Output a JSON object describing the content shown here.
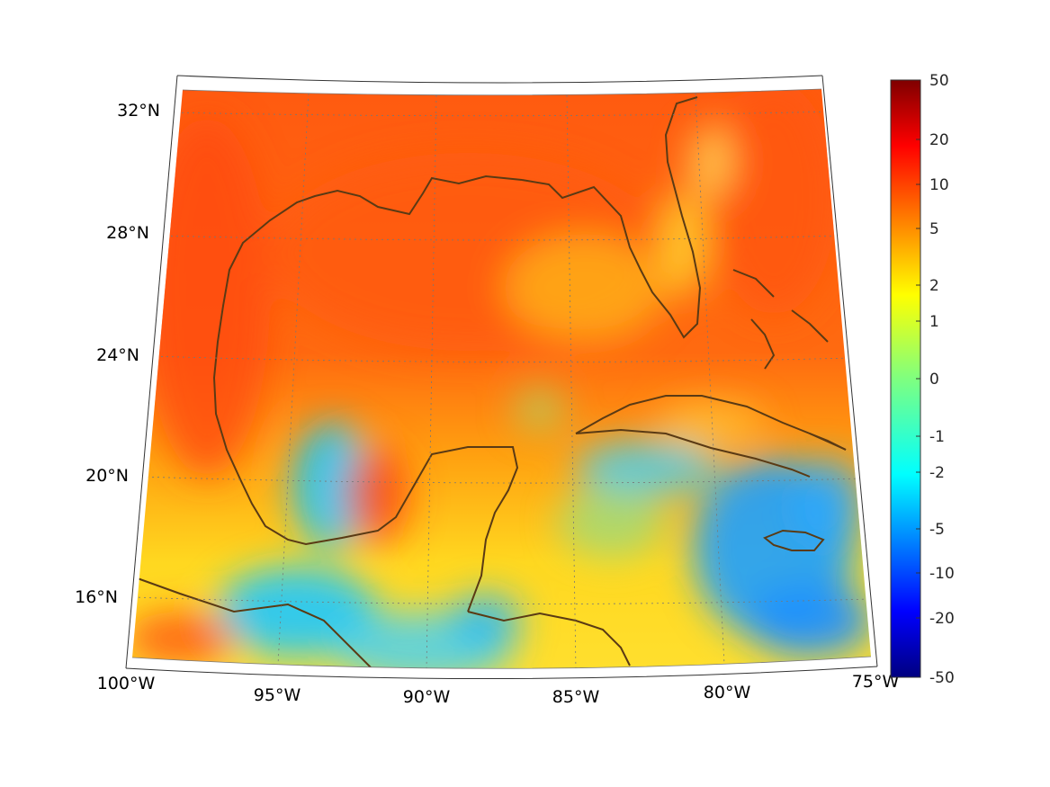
{
  "map": {
    "region": "Gulf of Mexico and Caribbean",
    "projection": "conic",
    "lon_range": [
      -100,
      -75
    ],
    "lat_range": [
      14,
      33
    ],
    "lat_ticks": [
      {
        "value": 32,
        "label": "32°N"
      },
      {
        "value": 28,
        "label": "28°N"
      },
      {
        "value": 24,
        "label": "24°N"
      },
      {
        "value": 20,
        "label": "20°N"
      },
      {
        "value": 16,
        "label": "16°N"
      }
    ],
    "lon_ticks": [
      {
        "value": -100,
        "label": "100°W"
      },
      {
        "value": -95,
        "label": "95°W"
      },
      {
        "value": -90,
        "label": "90°W"
      },
      {
        "value": -85,
        "label": "85°W"
      },
      {
        "value": -80,
        "label": "80°W"
      },
      {
        "value": -75,
        "label": "75°W"
      }
    ],
    "grid": true,
    "coastline_color": "#5a3a14"
  },
  "colorbar": {
    "colormap": "jet",
    "scale": "symmetric-log",
    "ticks": [
      "50",
      "20",
      "10",
      "5",
      "2",
      "1",
      "0",
      "-1",
      "-2",
      "-5",
      "-10",
      "-20",
      "-50"
    ]
  }
}
